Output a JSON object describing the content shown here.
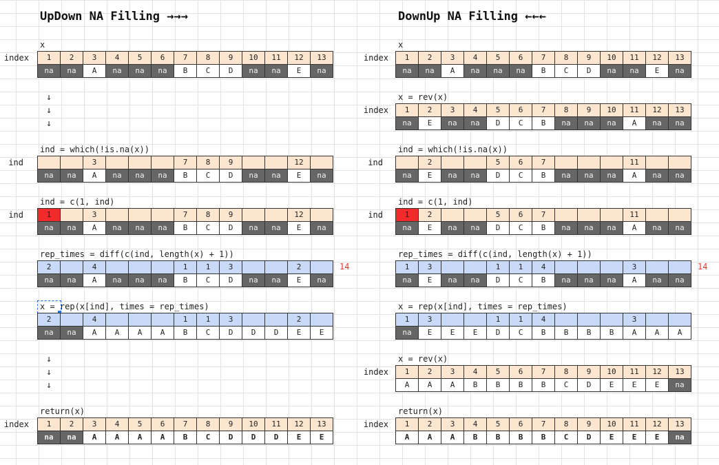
{
  "left": {
    "title": "UpDown NA Filling →→→",
    "labels": {
      "x": "x",
      "ind1": "ind = which(!is.na(x))",
      "ind2": "ind = c(1, ind)",
      "rep_times": "rep_times = diff(c(ind, length(x) + 1))",
      "rep": "x = rep(x[ind], times = rep_times)",
      "ret": "return(x)"
    },
    "side": {
      "index": "index",
      "ind": "ind"
    },
    "arrow": "↓",
    "total": "14",
    "rows": {
      "r1_top": [
        "1",
        "2",
        "3",
        "4",
        "5",
        "6",
        "7",
        "8",
        "9",
        "10",
        "11",
        "12",
        "13"
      ],
      "r1_bot": [
        "na",
        "na",
        "A",
        "na",
        "na",
        "na",
        "B",
        "C",
        "D",
        "na",
        "na",
        "E",
        "na"
      ],
      "r2_top": [
        "",
        "",
        "3",
        "",
        "",
        "",
        "7",
        "8",
        "9",
        "",
        "",
        "12",
        ""
      ],
      "r2_bot": [
        "na",
        "na",
        "A",
        "na",
        "na",
        "na",
        "B",
        "C",
        "D",
        "na",
        "na",
        "E",
        "na"
      ],
      "r3_top": [
        "1",
        "",
        "3",
        "",
        "",
        "",
        "7",
        "8",
        "9",
        "",
        "",
        "12",
        ""
      ],
      "r3_bot": [
        "na",
        "na",
        "A",
        "na",
        "na",
        "na",
        "B",
        "C",
        "D",
        "na",
        "na",
        "E",
        "na"
      ],
      "r4_top": [
        "2",
        "",
        "4",
        "",
        "",
        "",
        "1",
        "1",
        "3",
        "",
        "",
        "2",
        ""
      ],
      "r4_bot": [
        "na",
        "na",
        "A",
        "na",
        "na",
        "na",
        "B",
        "C",
        "D",
        "na",
        "na",
        "E",
        "na"
      ],
      "r5_top": [
        "2",
        "",
        "4",
        "",
        "",
        "",
        "1",
        "1",
        "3",
        "",
        "",
        "2",
        ""
      ],
      "r5_bot": [
        "na",
        "na",
        "A",
        "A",
        "A",
        "A",
        "B",
        "C",
        "D",
        "D",
        "D",
        "E",
        "E"
      ],
      "r6_top": [
        "1",
        "2",
        "3",
        "4",
        "5",
        "6",
        "7",
        "8",
        "9",
        "10",
        "11",
        "12",
        "13"
      ],
      "r6_bot": [
        "na",
        "na",
        "A",
        "A",
        "A",
        "A",
        "B",
        "C",
        "D",
        "D",
        "D",
        "E",
        "E"
      ]
    }
  },
  "right": {
    "title": "DownUp NA Filling ←←←",
    "labels": {
      "x": "x",
      "rev1": "x = rev(x)",
      "ind1": "ind = which(!is.na(x))",
      "ind2": "ind = c(1, ind)",
      "rep_times": "rep_times = diff(c(ind, length(x) + 1))",
      "rep": "x = rep(x[ind], times = rep_times)",
      "rev2": "x = rev(x)",
      "ret": "return(x)"
    },
    "side": {
      "index": "index",
      "ind": "ind"
    },
    "total": "14",
    "rows": {
      "r1_top": [
        "1",
        "2",
        "3",
        "4",
        "5",
        "6",
        "7",
        "8",
        "9",
        "10",
        "11",
        "12",
        "13"
      ],
      "r1_bot": [
        "na",
        "na",
        "A",
        "na",
        "na",
        "na",
        "B",
        "C",
        "D",
        "na",
        "na",
        "E",
        "na"
      ],
      "r2_top": [
        "1",
        "2",
        "3",
        "4",
        "5",
        "6",
        "7",
        "8",
        "9",
        "10",
        "11",
        "12",
        "13"
      ],
      "r2_bot": [
        "na",
        "E",
        "na",
        "na",
        "D",
        "C",
        "B",
        "na",
        "na",
        "na",
        "A",
        "na",
        "na"
      ],
      "r3_top": [
        "",
        "2",
        "",
        "",
        "5",
        "6",
        "7",
        "",
        "",
        "",
        "11",
        "",
        ""
      ],
      "r3_bot": [
        "na",
        "E",
        "na",
        "na",
        "D",
        "C",
        "B",
        "na",
        "na",
        "na",
        "A",
        "na",
        "na"
      ],
      "r4_top": [
        "1",
        "2",
        "",
        "",
        "5",
        "6",
        "7",
        "",
        "",
        "",
        "11",
        "",
        ""
      ],
      "r4_bot": [
        "na",
        "E",
        "na",
        "na",
        "D",
        "C",
        "B",
        "na",
        "na",
        "na",
        "A",
        "na",
        "na"
      ],
      "r5_top": [
        "1",
        "3",
        "",
        "",
        "1",
        "1",
        "4",
        "",
        "",
        "",
        "3",
        "",
        ""
      ],
      "r5_bot": [
        "na",
        "E",
        "na",
        "na",
        "D",
        "C",
        "B",
        "na",
        "na",
        "na",
        "A",
        "na",
        "na"
      ],
      "r6_top": [
        "1",
        "3",
        "",
        "",
        "1",
        "1",
        "4",
        "",
        "",
        "",
        "3",
        "",
        ""
      ],
      "r6_bot": [
        "na",
        "E",
        "E",
        "E",
        "D",
        "C",
        "B",
        "B",
        "B",
        "B",
        "A",
        "A",
        "A"
      ],
      "r7_top": [
        "1",
        "2",
        "3",
        "4",
        "5",
        "6",
        "7",
        "8",
        "9",
        "10",
        "11",
        "12",
        "13"
      ],
      "r7_bot": [
        "A",
        "A",
        "A",
        "B",
        "B",
        "B",
        "B",
        "C",
        "D",
        "E",
        "E",
        "E",
        "na"
      ],
      "r8_top": [
        "1",
        "2",
        "3",
        "4",
        "5",
        "6",
        "7",
        "8",
        "9",
        "10",
        "11",
        "12",
        "13"
      ],
      "r8_bot": [
        "A",
        "A",
        "A",
        "B",
        "B",
        "B",
        "B",
        "C",
        "D",
        "E",
        "E",
        "E",
        "na"
      ]
    }
  }
}
